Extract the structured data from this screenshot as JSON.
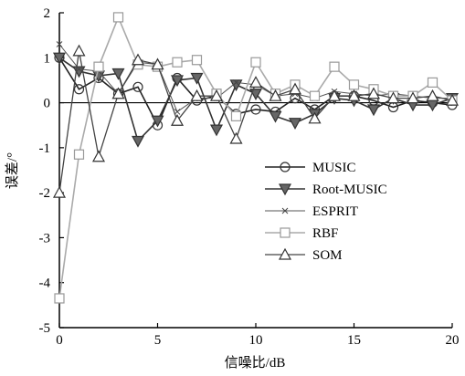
{
  "chart_data": {
    "type": "line",
    "title": "",
    "xlabel": "信噪比/dB",
    "ylabel": "误差/°",
    "xlim": [
      0,
      20
    ],
    "ylim": [
      -5,
      2
    ],
    "xticks": [
      "0",
      "5",
      "10",
      "15",
      "20"
    ],
    "yticks": [
      "2",
      "1",
      "0",
      "-1",
      "-2",
      "-3",
      "-4",
      "-5"
    ],
    "legend_position": "center-right",
    "x": [
      0,
      1,
      2,
      3,
      4,
      5,
      6,
      7,
      8,
      9,
      10,
      11,
      12,
      13,
      14,
      15,
      16,
      17,
      18,
      19,
      20
    ],
    "series": [
      {
        "name": "MUSIC",
        "marker": "circle",
        "values": [
          1.0,
          0.3,
          0.55,
          0.2,
          0.35,
          -0.5,
          0.55,
          0.05,
          0.15,
          -0.25,
          -0.15,
          -0.2,
          0.1,
          -0.15,
          0.15,
          0.15,
          0.05,
          -0.1,
          0.05,
          0.0,
          -0.05
        ]
      },
      {
        "name": "Root-MUSIC",
        "marker": "triangle-down",
        "values": [
          1.0,
          0.7,
          0.6,
          0.65,
          -0.85,
          -0.4,
          0.5,
          0.55,
          -0.6,
          0.4,
          0.2,
          -0.3,
          -0.45,
          -0.25,
          0.1,
          0.05,
          -0.15,
          0.1,
          -0.05,
          -0.05,
          0.1
        ]
      },
      {
        "name": "ESPRIT",
        "marker": "x",
        "values": [
          1.3,
          0.75,
          0.7,
          0.2,
          0.9,
          0.85,
          -0.2,
          0.1,
          0.1,
          0.45,
          0.4,
          0.15,
          0.2,
          0.1,
          0.25,
          0.2,
          0.15,
          0.2,
          0.15,
          0.1,
          0.1
        ]
      },
      {
        "name": "RBF",
        "marker": "square",
        "values": [
          -4.35,
          -1.15,
          0.8,
          1.9,
          0.85,
          0.8,
          0.9,
          0.95,
          0.2,
          -0.3,
          0.9,
          0.2,
          0.4,
          0.15,
          0.8,
          0.4,
          0.3,
          0.15,
          0.15,
          0.45,
          0.05
        ]
      },
      {
        "name": "SOM",
        "marker": "triangle-up",
        "values": [
          -2.0,
          1.15,
          -1.2,
          0.2,
          0.95,
          0.85,
          -0.4,
          0.15,
          0.15,
          -0.8,
          0.45,
          0.15,
          0.3,
          -0.35,
          0.15,
          0.15,
          0.2,
          0.1,
          0.1,
          0.15,
          0.05
        ]
      }
    ]
  }
}
